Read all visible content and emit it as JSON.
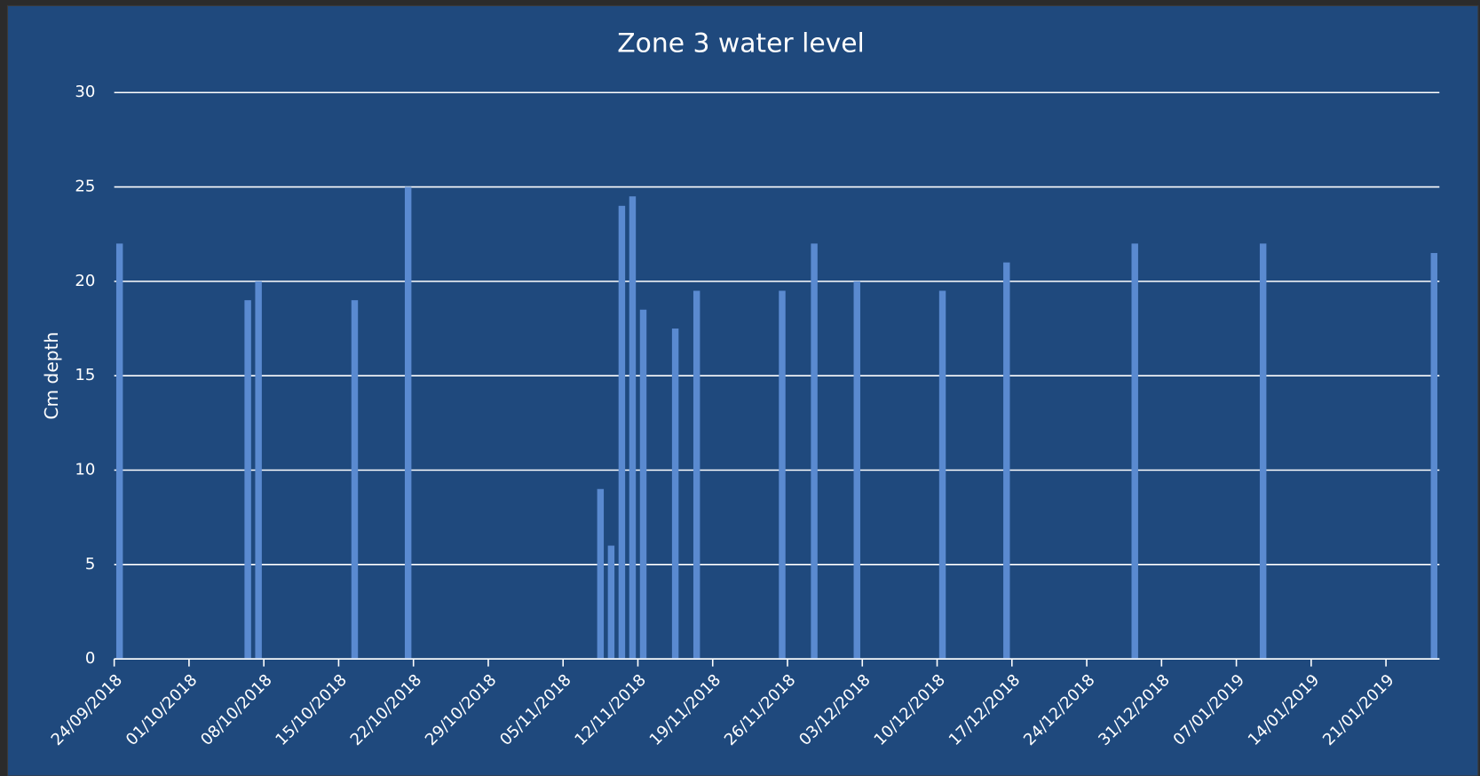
{
  "chart_data": {
    "type": "bar",
    "title": "Zone 3 water level",
    "y_label": "Cm depth",
    "x": [
      "24/09/2018",
      "06/10/2018",
      "07/10/2018",
      "16/10/2018",
      "21/10/2018",
      "08/11/2018",
      "09/11/2018",
      "10/11/2018",
      "11/11/2018",
      "12/11/2018",
      "15/11/2018",
      "17/11/2018",
      "25/11/2018",
      "28/11/2018",
      "02/12/2018",
      "10/12/2018",
      "16/12/2018",
      "28/12/2018",
      "09/01/2019",
      "25/01/2019"
    ],
    "values": [
      22,
      19,
      20,
      19,
      25,
      9,
      6,
      24,
      24.5,
      18.5,
      17.5,
      19.5,
      19.5,
      22,
      20,
      19.5,
      21,
      22,
      22,
      21.5
    ],
    "color": "#5a8ad0",
    "xlim": [
      "24/09/2018",
      "26/01/2019"
    ],
    "xticks": [
      "24/09/2018",
      "01/10/2018",
      "08/10/2018",
      "15/10/2018",
      "22/10/2018",
      "29/10/2018",
      "05/11/2018",
      "12/11/2018",
      "19/11/2018",
      "26/11/2018",
      "03/12/2018",
      "10/12/2018",
      "17/12/2018",
      "24/12/2018",
      "31/12/2018",
      "07/01/2019",
      "14/01/2019",
      "21/01/2019"
    ],
    "ylim": [
      0,
      30
    ],
    "yticks": [
      0,
      5,
      10,
      15,
      20,
      25,
      30
    ],
    "grid": true
  }
}
